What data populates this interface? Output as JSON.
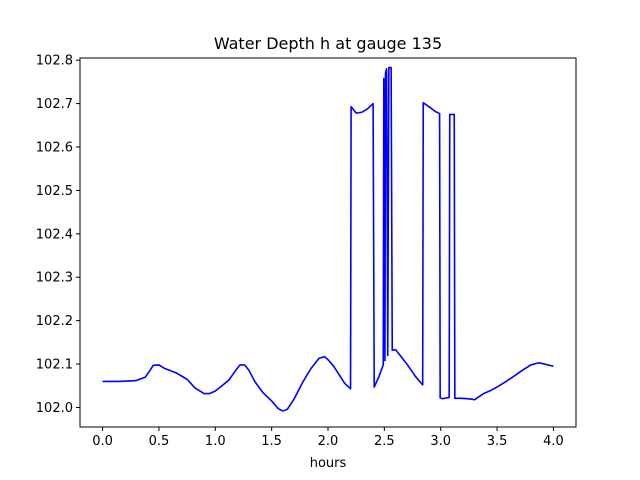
{
  "chart_data": {
    "type": "line",
    "title": "Water Depth h at gauge 135",
    "xlabel": "hours",
    "ylabel": "",
    "xlim": [
      -0.2,
      4.2
    ],
    "ylim": [
      101.955,
      102.805
    ],
    "xticks": [
      0.0,
      0.5,
      1.0,
      1.5,
      2.0,
      2.5,
      3.0,
      3.5,
      4.0
    ],
    "xtick_labels": [
      "0.0",
      "0.5",
      "1.0",
      "1.5",
      "2.0",
      "2.5",
      "3.0",
      "3.5",
      "4.0"
    ],
    "yticks": [
      102.0,
      102.1,
      102.2,
      102.3,
      102.4,
      102.5,
      102.6,
      102.7,
      102.8
    ],
    "ytick_labels": [
      "102.0",
      "102.1",
      "102.2",
      "102.3",
      "102.4",
      "102.5",
      "102.6",
      "102.7",
      "102.8"
    ],
    "grid": false,
    "series": [
      {
        "color": "#0000ff",
        "x": [
          0.0,
          0.15,
          0.3,
          0.38,
          0.42,
          0.45,
          0.5,
          0.55,
          0.65,
          0.75,
          0.82,
          0.9,
          0.95,
          1.0,
          1.05,
          1.12,
          1.18,
          1.22,
          1.26,
          1.3,
          1.35,
          1.42,
          1.5,
          1.56,
          1.6,
          1.64,
          1.7,
          1.78,
          1.85,
          1.92,
          1.97,
          2.0,
          2.05,
          2.1,
          2.15,
          2.2,
          2.205,
          2.25,
          2.3,
          2.35,
          2.4,
          2.41,
          2.45,
          2.49,
          2.495,
          2.505,
          2.51,
          2.52,
          2.53,
          2.54,
          2.56,
          2.57,
          2.6,
          2.7,
          2.78,
          2.84,
          2.845,
          2.9,
          2.95,
          2.99,
          2.995,
          3.02,
          3.05,
          3.075,
          3.08,
          3.12,
          3.125,
          3.18,
          3.25,
          3.3,
          3.38,
          3.45,
          3.5,
          3.58,
          3.65,
          3.72,
          3.8,
          3.87,
          3.92,
          4.0
        ],
        "y": [
          102.06,
          102.06,
          102.062,
          102.07,
          102.085,
          102.097,
          102.098,
          102.09,
          102.08,
          102.065,
          102.045,
          102.032,
          102.032,
          102.038,
          102.048,
          102.063,
          102.085,
          102.098,
          102.098,
          102.085,
          102.06,
          102.035,
          102.015,
          101.997,
          101.992,
          101.996,
          102.02,
          102.06,
          102.09,
          102.113,
          102.117,
          102.11,
          102.095,
          102.075,
          102.055,
          102.043,
          102.693,
          102.678,
          102.68,
          102.688,
          102.7,
          102.047,
          102.07,
          102.098,
          102.758,
          102.108,
          102.77,
          102.78,
          102.12,
          102.783,
          102.783,
          102.132,
          102.133,
          102.1,
          102.07,
          102.052,
          102.702,
          102.692,
          102.682,
          102.677,
          102.022,
          102.02,
          102.022,
          102.023,
          102.675,
          102.675,
          102.021,
          102.021,
          102.02,
          102.018,
          102.032,
          102.04,
          102.047,
          102.06,
          102.072,
          102.085,
          102.098,
          102.103,
          102.1,
          102.095
        ]
      }
    ]
  }
}
